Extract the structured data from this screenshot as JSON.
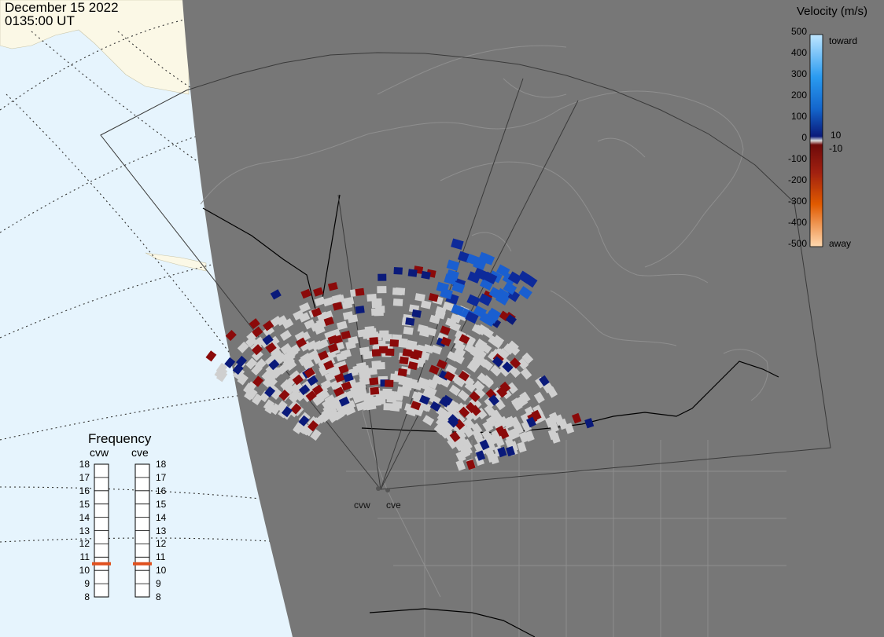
{
  "header": {
    "date": "December 15 2022",
    "time": "0135:00 UT"
  },
  "colorbar": {
    "title": "Velocity (m/s)",
    "ticks": [
      "500",
      "400",
      "300",
      "200",
      "100",
      "0",
      "-100",
      "-200",
      "-300",
      "-400",
      "-500"
    ],
    "label_toward": "toward",
    "label_away": "away",
    "label_pos10": "10",
    "label_neg10": "-10",
    "colors": {
      "toward_strong": "#bfe6ff",
      "toward_mid": "#1e7bd9",
      "toward_weak": "#0a1a7a",
      "away_weak": "#6e0a0a",
      "away_mid": "#e05a00",
      "away_strong": "#ffd9b0",
      "ground_scatter": "#cfcfcf"
    }
  },
  "frequency_panel": {
    "title": "Frequency",
    "radars": [
      "cvw",
      "cve"
    ],
    "scale": [
      "18",
      "17",
      "16",
      "15",
      "14",
      "13",
      "12",
      "11",
      "10",
      "9",
      "8"
    ],
    "selected_mhz": [
      10.5,
      10.5
    ],
    "marker_color": "#e0501e"
  },
  "map": {
    "sites": [
      "cvw",
      "cve"
    ],
    "colors": {
      "ocean": "#e6f4fd",
      "land_unprojected": "#fbf8e6",
      "night_shade": "#777777",
      "borders": "#000000",
      "coastlines": "#8f8f8f"
    }
  }
}
